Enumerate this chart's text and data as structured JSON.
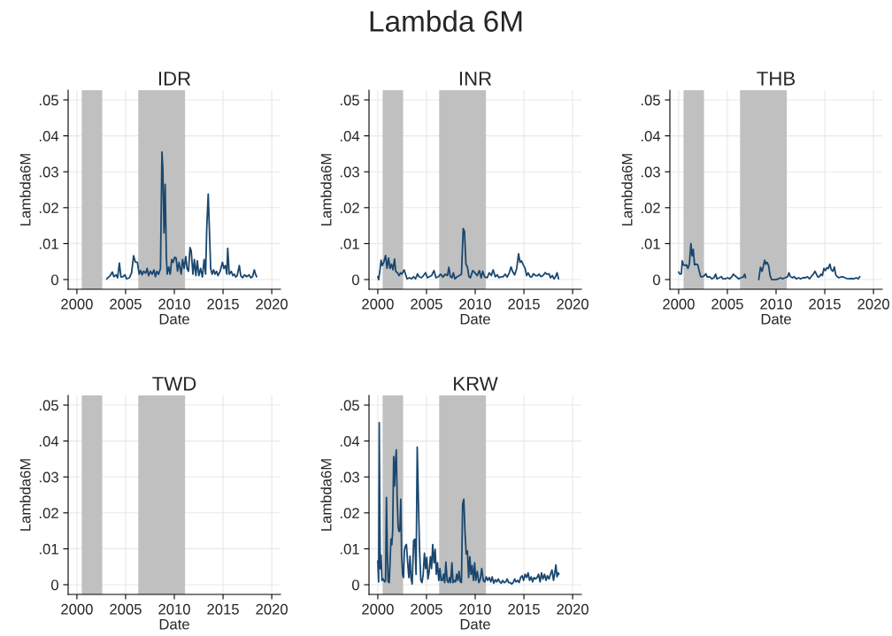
{
  "chart_data": [
    {
      "type": "line",
      "title": "IDR",
      "xlabel": "Date",
      "ylabel": "Lambda6M",
      "annotations": [
        "Lambda 6M"
      ],
      "xlim": [
        1999.1,
        2020.9
      ],
      "ylim": [
        -0.0027,
        0.0527
      ],
      "xticks": [
        2000,
        2005,
        2010,
        2015,
        2020
      ],
      "yticks": [
        0,
        {
          "value": 0.01,
          "label": ".01"
        },
        {
          "value": 0.02,
          "label": ".02"
        },
        {
          "value": 0.03,
          "label": ".03"
        },
        {
          "value": 0.04,
          "label": ".04"
        },
        {
          "value": 0.05,
          "label": ".05"
        }
      ],
      "grid": true,
      "legend": false,
      "bands": [
        {
          "axis": "x",
          "from": 2000.5,
          "to": 2002.6,
          "color": "#c0c0c0"
        },
        {
          "axis": "x",
          "from": 2006.3,
          "to": 2011.1,
          "color": "#c0c0c0"
        }
      ],
      "series": [
        {
          "color": "#1a476f",
          "x": [
            2003.06,
            2003.27,
            2003.42,
            2003.64,
            2003.79,
            2004.03,
            2004.18,
            2004.36,
            2004.52,
            2004.73,
            2004.94,
            2005.09,
            2005.39,
            2005.61,
            2005.82,
            2006.0,
            2006.21,
            2006.39,
            2006.55,
            2006.7,
            2006.85,
            2007.06,
            2007.21,
            2007.36,
            2007.55,
            2007.73,
            2007.91,
            2008.06,
            2008.21,
            2008.39,
            2008.58,
            2008.73,
            2008.82,
            2008.94,
            2009.06,
            2009.18,
            2009.27,
            2009.42,
            2009.58,
            2009.73,
            2009.88,
            2010.03,
            2010.18,
            2010.33,
            2010.48,
            2010.7,
            2010.85,
            2011.0,
            2011.18,
            2011.3,
            2011.45,
            2011.61,
            2011.73,
            2011.91,
            2012.06,
            2012.21,
            2012.36,
            2012.52,
            2012.7,
            2012.88,
            2013.06,
            2013.21,
            2013.33,
            2013.48,
            2013.61,
            2013.73,
            2013.88,
            2014.03,
            2014.18,
            2014.33,
            2014.48,
            2014.7,
            2014.94,
            2015.09,
            2015.24,
            2015.39,
            2015.48,
            2015.64,
            2015.85,
            2016.0,
            2016.15,
            2016.3,
            2016.45,
            2016.67,
            2016.82,
            2017.0,
            2017.21,
            2017.42,
            2017.67,
            2017.85,
            2018.03,
            2018.21,
            2018.33,
            2018.45
          ],
          "values": [
            0.0002,
            0.0007,
            0.0011,
            0.0021,
            0.0008,
            0.0013,
            0.0005,
            0.0046,
            0.0007,
            0.0008,
            0.0013,
            0.0002,
            0.0005,
            0.0019,
            0.0066,
            0.0049,
            0.0048,
            0.0015,
            0.0025,
            0.0013,
            0.0023,
            0.0018,
            0.0031,
            0.0011,
            0.0023,
            0.0015,
            0.0027,
            0.0008,
            0.0023,
            0.0015,
            0.0031,
            0.0355,
            0.031,
            0.013,
            0.0265,
            0.0064,
            0.0015,
            0.0035,
            0.0015,
            0.0056,
            0.0048,
            0.0062,
            0.006,
            0.0023,
            0.0048,
            0.0015,
            0.0056,
            0.0031,
            0.0064,
            0.0031,
            0.0023,
            0.0089,
            0.008,
            0.0015,
            0.0056,
            0.0011,
            0.0052,
            0.0011,
            0.0031,
            0.0007,
            0.0056,
            0.0015,
            0.0146,
            0.0238,
            0.013,
            0.0031,
            0.0015,
            0.0027,
            0.0015,
            0.0023,
            0.0011,
            0.0023,
            0.0048,
            0.0031,
            0.0039,
            0.0015,
            0.0087,
            0.0015,
            0.0023,
            0.0011,
            0.0015,
            0.0007,
            0.0011,
            0.0039,
            0.0011,
            0.0005,
            0.0013,
            0.0008,
            0.0013,
            0.0005,
            0.0008,
            0.0027,
            0.0015,
            0.0008
          ]
        }
      ]
    },
    {
      "type": "line",
      "title": "INR",
      "xlabel": "Date",
      "ylabel": "Lambda6M",
      "xlim": [
        1999.1,
        2020.9
      ],
      "ylim": [
        -0.0027,
        0.0527
      ],
      "xticks": [
        2000,
        2005,
        2010,
        2015,
        2020
      ],
      "yticks": [
        0,
        {
          "value": 0.01,
          "label": ".01"
        },
        {
          "value": 0.02,
          "label": ".02"
        },
        {
          "value": 0.03,
          "label": ".03"
        },
        {
          "value": 0.04,
          "label": ".04"
        },
        {
          "value": 0.05,
          "label": ".05"
        }
      ],
      "grid": true,
      "legend": false,
      "bands": [
        {
          "axis": "x",
          "from": 2000.5,
          "to": 2002.6,
          "color": "#c0c0c0"
        },
        {
          "axis": "x",
          "from": 2006.3,
          "to": 2011.1,
          "color": "#c0c0c0"
        }
      ],
      "series": [
        {
          "color": "#1a476f",
          "x": [
            2000.0,
            2000.09,
            2000.25,
            2000.34,
            2000.46,
            2000.61,
            2000.8,
            2000.95,
            2001.1,
            2001.26,
            2001.41,
            2001.56,
            2001.72,
            2001.84,
            2002.02,
            2002.18,
            2002.33,
            2002.48,
            2002.7,
            2002.85,
            2003.01,
            2003.25,
            2003.47,
            2003.68,
            2003.87,
            2004.08,
            2004.23,
            2004.48,
            2004.69,
            2004.91,
            2005.09,
            2005.31,
            2005.52,
            2005.77,
            2005.98,
            2006.23,
            2006.44,
            2006.69,
            2006.93,
            2007.15,
            2007.3,
            2007.45,
            2007.61,
            2007.76,
            2007.91,
            2008.16,
            2008.37,
            2008.59,
            2008.77,
            2008.9,
            2009.05,
            2009.2,
            2009.36,
            2009.51,
            2009.75,
            2009.97,
            2010.21,
            2010.43,
            2010.61,
            2010.77,
            2010.98,
            2011.23,
            2011.44,
            2011.66,
            2011.84,
            2012.06,
            2012.27,
            2012.45,
            2012.67,
            2012.88,
            2013.07,
            2013.28,
            2013.5,
            2013.68,
            2013.83,
            2014.05,
            2014.26,
            2014.45,
            2014.6,
            2014.75,
            2014.97,
            2015.12,
            2015.28,
            2015.43,
            2015.64,
            2015.8,
            2015.98,
            2016.2,
            2016.41,
            2016.56,
            2016.75,
            2016.96,
            2017.18,
            2017.36,
            2017.58,
            2017.73,
            2017.91,
            2018.1,
            2018.25,
            2018.4,
            2018.56
          ],
          "values": [
            0.0008,
            0,
            0.0031,
            0.0054,
            0.0039,
            0.0048,
            0.0067,
            0.0031,
            0.006,
            0.0031,
            0.0043,
            0.0027,
            0.0057,
            0.0023,
            0.0019,
            0.0011,
            0.0019,
            0.0015,
            0.0027,
            0.0015,
            0.0002,
            0.0005,
            0.0002,
            0.0008,
            0.0002,
            0.0016,
            0.0008,
            0.0005,
            0.0011,
            0.0019,
            0.0005,
            0.0008,
            0.0011,
            0.0025,
            0.0005,
            0.0008,
            0.0015,
            0.0007,
            0.0015,
            0.0011,
            0.0034,
            0.0008,
            0.0005,
            0.0019,
            0.0002,
            0.0008,
            0.0011,
            0.0015,
            0.0142,
            0.0134,
            0.0043,
            0.0035,
            0.0008,
            0.0005,
            0.0025,
            0.0019,
            0.0011,
            0.0025,
            0.0005,
            0.0023,
            0.0007,
            0.0005,
            0.0019,
            0.0011,
            0.0027,
            0.0008,
            0.0013,
            0.0005,
            0.0008,
            0.0008,
            0.0015,
            0.0007,
            0.0019,
            0.0035,
            0.0023,
            0.0013,
            0.0031,
            0.0072,
            0.0048,
            0.0052,
            0.0039,
            0.0031,
            0.0011,
            0.0019,
            0.0008,
            0.0007,
            0.0016,
            0.0011,
            0.0011,
            0.0015,
            0.0008,
            0.0011,
            0.0019,
            0.0015,
            0.0016,
            0.0005,
            0.0011,
            0.0002,
            0.0008,
            0.0019,
            0.0002
          ]
        }
      ]
    },
    {
      "type": "line",
      "title": "THB",
      "xlabel": "Date",
      "ylabel": "Lambda6M",
      "xlim": [
        1999.1,
        2020.9
      ],
      "ylim": [
        -0.0027,
        0.0527
      ],
      "xticks": [
        2000,
        2005,
        2010,
        2015,
        2020
      ],
      "yticks": [
        0,
        {
          "value": 0.01,
          "label": ".01"
        },
        {
          "value": 0.02,
          "label": ".02"
        },
        {
          "value": 0.03,
          "label": ".03"
        },
        {
          "value": 0.04,
          "label": ".04"
        },
        {
          "value": 0.05,
          "label": ".05"
        }
      ],
      "grid": true,
      "legend": false,
      "bands": [
        {
          "axis": "x",
          "from": 2000.5,
          "to": 2002.6,
          "color": "#c0c0c0"
        },
        {
          "axis": "x",
          "from": 2006.3,
          "to": 2011.1,
          "color": "#c0c0c0"
        }
      ],
      "series": [
        {
          "color": "#1a476f",
          "x": [
            2000.0,
            2000.12,
            2000.28,
            2000.37,
            2000.49,
            2000.64,
            2000.8,
            2000.95,
            2001.1,
            2001.26,
            2001.38,
            2001.5,
            2001.63,
            2001.78,
            2001.96,
            2002.12,
            2002.27,
            2002.48,
            2002.64,
            2002.79,
            2002.94,
            2003.19,
            2003.4,
            2003.62,
            2003.8,
            2003.93,
            2004.17,
            2004.39,
            2004.54,
            2004.79,
            2005.03,
            2005.25,
            2005.46,
            2005.61,
            2005.77,
            2005.95,
            2006.17,
            2006.38,
            2006.63,
            2006.78,
            2006.87,
            2007.5,
            2008.22,
            2008.4,
            2008.56,
            2008.71,
            2008.83,
            2008.93,
            2009.08,
            2009.23,
            2009.39,
            2009.54,
            2009.75,
            2010.0,
            2010.25,
            2010.46,
            2010.67,
            2010.92,
            2011.17,
            2011.32,
            2011.47,
            2011.69,
            2011.84,
            2012.09,
            2012.3,
            2012.52,
            2012.76,
            2013.01,
            2013.22,
            2013.44,
            2013.68,
            2013.83,
            2013.99,
            2014.14,
            2014.29,
            2014.45,
            2014.6,
            2014.75,
            2014.91,
            2015.06,
            2015.21,
            2015.37,
            2015.52,
            2015.67,
            2015.83,
            2015.98,
            2016.13,
            2016.29,
            2016.44,
            2016.66,
            2016.84,
            2017.06,
            2017.27,
            2017.52,
            2017.73,
            2017.98,
            2018.22,
            2018.44,
            2018.59
          ],
          "values": [
            0.0021,
            0.0015,
            0.0016,
            0.0052,
            0.0041,
            0.0039,
            0.0041,
            0.0031,
            0.0043,
            0.01,
            0.0066,
            0.0084,
            0.0041,
            0.0043,
            0.0041,
            0.0023,
            0.0008,
            0.0008,
            0.0011,
            0.0016,
            0.0007,
            0.0008,
            0.0002,
            0.0005,
            0.0015,
            0.0002,
            0.0005,
            0.0008,
            0.0002,
            0.0002,
            0.0005,
            0.0002,
            0.0008,
            0.0015,
            0.0011,
            0.0007,
            0.0002,
            0.0005,
            0.0007,
            0.0015,
            0.0005,
            null,
            0,
            0.0034,
            0.0023,
            0.0039,
            0.0054,
            0.0043,
            0.0048,
            0.0039,
            0.0011,
            0,
            0,
            0,
            0.0002,
            0.0005,
            0.0002,
            0.0005,
            0.0007,
            0.0019,
            0.0008,
            0.0005,
            0.0008,
            0.0002,
            0.0005,
            0.0002,
            0.0005,
            0.0005,
            0.0008,
            0.0002,
            0.0011,
            0.0015,
            0.0023,
            0.0015,
            0.0007,
            0.0008,
            0.0015,
            0.0011,
            0.0031,
            0.0025,
            0.0033,
            0.0031,
            0.0043,
            0.0027,
            0.0023,
            0.0035,
            0.0013,
            0.0008,
            0.0005,
            0.0007,
            0.0008,
            0.0005,
            0.0003,
            0.0002,
            0.0003,
            0.0002,
            0.0005,
            0.0002,
            0.0008
          ]
        }
      ]
    },
    {
      "type": "line",
      "title": "TWD",
      "xlabel": "Date",
      "ylabel": "Lambda6M",
      "xlim": [
        1999.1,
        2020.9
      ],
      "ylim": [
        -0.0027,
        0.0527
      ],
      "xticks": [
        2000,
        2005,
        2010,
        2015,
        2020
      ],
      "yticks": [
        0,
        {
          "value": 0.01,
          "label": ".01"
        },
        {
          "value": 0.02,
          "label": ".02"
        },
        {
          "value": 0.03,
          "label": ".03"
        },
        {
          "value": 0.04,
          "label": ".04"
        },
        {
          "value": 0.05,
          "label": ".05"
        }
      ],
      "grid": true,
      "legend": false,
      "bands": [
        {
          "axis": "x",
          "from": 2000.5,
          "to": 2002.6,
          "color": "#c0c0c0"
        },
        {
          "axis": "x",
          "from": 2006.3,
          "to": 2011.1,
          "color": "#c0c0c0"
        }
      ]
    },
    {
      "type": "line",
      "title": "KRW",
      "xlabel": "Date",
      "ylabel": "Lambda6M",
      "xlim": [
        1999.1,
        2020.9
      ],
      "ylim": [
        -0.0027,
        0.0527
      ],
      "xticks": [
        2000,
        2005,
        2010,
        2015,
        2020
      ],
      "yticks": [
        0,
        {
          "value": 0.01,
          "label": ".01"
        },
        {
          "value": 0.02,
          "label": ".02"
        },
        {
          "value": 0.03,
          "label": ".03"
        },
        {
          "value": 0.04,
          "label": ".04"
        },
        {
          "value": 0.05,
          "label": ".05"
        }
      ],
      "grid": true,
      "legend": false,
      "bands": [
        {
          "axis": "x",
          "from": 2000.5,
          "to": 2002.6,
          "color": "#c0c0c0"
        },
        {
          "axis": "x",
          "from": 2006.3,
          "to": 2011.1,
          "color": "#c0c0c0"
        }
      ],
      "series": [
        {
          "color": "#1a476f",
          "x": [
            2000.0,
            2000.09,
            2000.15,
            2000.25,
            2000.34,
            2000.43,
            2000.55,
            2000.71,
            2000.8,
            2000.89,
            2000.98,
            2001.07,
            2001.17,
            2001.26,
            2001.35,
            2001.44,
            2001.53,
            2001.63,
            2001.72,
            2001.81,
            2001.9,
            2001.99,
            2002.09,
            2002.18,
            2002.27,
            2002.36,
            2002.45,
            2002.55,
            2002.64,
            2002.73,
            2002.82,
            2002.94,
            2003.07,
            2003.19,
            2003.31,
            2003.4,
            2003.53,
            2003.68,
            2003.8,
            2003.93,
            2004.05,
            2004.17,
            2004.29,
            2004.42,
            2004.54,
            2004.66,
            2004.79,
            2004.91,
            2005.03,
            2005.15,
            2005.28,
            2005.4,
            2005.52,
            2005.64,
            2005.77,
            2005.89,
            2006.01,
            2006.13,
            2006.26,
            2006.38,
            2006.5,
            2006.63,
            2006.75,
            2006.87,
            2006.99,
            2007.12,
            2007.24,
            2007.36,
            2007.48,
            2007.61,
            2007.73,
            2007.85,
            2007.98,
            2008.1,
            2008.22,
            2008.34,
            2008.47,
            2008.59,
            2008.71,
            2008.83,
            2008.96,
            2009.08,
            2009.2,
            2009.33,
            2009.45,
            2009.57,
            2009.69,
            2009.82,
            2009.94,
            2010.06,
            2010.21,
            2010.37,
            2010.52,
            2010.67,
            2010.83,
            2010.98,
            2011.13,
            2011.29,
            2011.44,
            2011.6,
            2011.75,
            2011.9,
            2012.06,
            2012.21,
            2012.36,
            2012.52,
            2012.67,
            2012.82,
            2012.98,
            2013.13,
            2013.28,
            2013.44,
            2013.59,
            2013.74,
            2013.9,
            2014.05,
            2014.2,
            2014.36,
            2014.51,
            2014.66,
            2014.82,
            2014.97,
            2015.12,
            2015.28,
            2015.43,
            2015.58,
            2015.74,
            2015.89,
            2016.04,
            2016.2,
            2016.35,
            2016.5,
            2016.66,
            2016.81,
            2016.96,
            2017.12,
            2017.27,
            2017.42,
            2017.58,
            2017.73,
            2017.88,
            2018.04,
            2018.19,
            2018.28,
            2018.4,
            2018.53,
            2018.59
          ],
          "values": [
            0.0066,
            0.0008,
            0.0451,
            0.0045,
            0.0082,
            0.0012,
            0.0016,
            0.0008,
            0.0012,
            0.0243,
            0.0094,
            0.0008,
            0.0006,
            0.0061,
            0.0127,
            0.0111,
            0.0148,
            0.0357,
            0.0275,
            0.0339,
            0.0375,
            0.0242,
            0.016,
            0.0148,
            0.0152,
            0.0238,
            0.0078,
            0.0029,
            0.002,
            0.0094,
            0.0107,
            0.0112,
            0.0061,
            0.002,
            0.008,
            0.002,
            0.0002,
            0.0123,
            0.0127,
            0.0029,
            0.0383,
            0.0234,
            0.0094,
            0.0012,
            0.0006,
            0.0029,
            0.0088,
            0.0045,
            0.0076,
            0.0016,
            0.0037,
            0.0078,
            0.0045,
            0.0112,
            0.0061,
            0.0098,
            0.0029,
            0.0061,
            0.0012,
            0.0045,
            0.0012,
            0.0012,
            0.0029,
            0.0006,
            0.0063,
            0.0012,
            0.0006,
            0.002,
            0.0006,
            0.0061,
            0.0006,
            0.0012,
            0.0008,
            0.0029,
            0.0012,
            0.0037,
            0.0008,
            0.0006,
            0.0225,
            0.0238,
            0.0143,
            0.0086,
            0.0094,
            0.002,
            0.0078,
            0.0029,
            0.0053,
            0.0012,
            0.0061,
            0.0012,
            0.0037,
            0.0006,
            0.0016,
            0.0045,
            0.0012,
            0.0008,
            0.0022,
            0.0012,
            0.002,
            0.0008,
            0.0022,
            0.0004,
            0.0014,
            0.0008,
            0.0016,
            0.0008,
            0.0004,
            0.0012,
            0.0006,
            0.0008,
            0.0016,
            0.0006,
            0.0006,
            0.0002,
            0.0006,
            0.0016,
            0.0008,
            0.0012,
            0.0006,
            0.002,
            0.0025,
            0.0012,
            0.0029,
            0.002,
            0.0033,
            0.0012,
            0.0022,
            0.0008,
            0.002,
            0.0016,
            0.002,
            0.0029,
            0.0008,
            0.0033,
            0.0016,
            0.0029,
            0.0012,
            0.0025,
            0.0016,
            0.0029,
            0.0041,
            0.0012,
            0.0037,
            0.0055,
            0.0022,
            0.0033,
            0.0029
          ]
        }
      ]
    }
  ]
}
